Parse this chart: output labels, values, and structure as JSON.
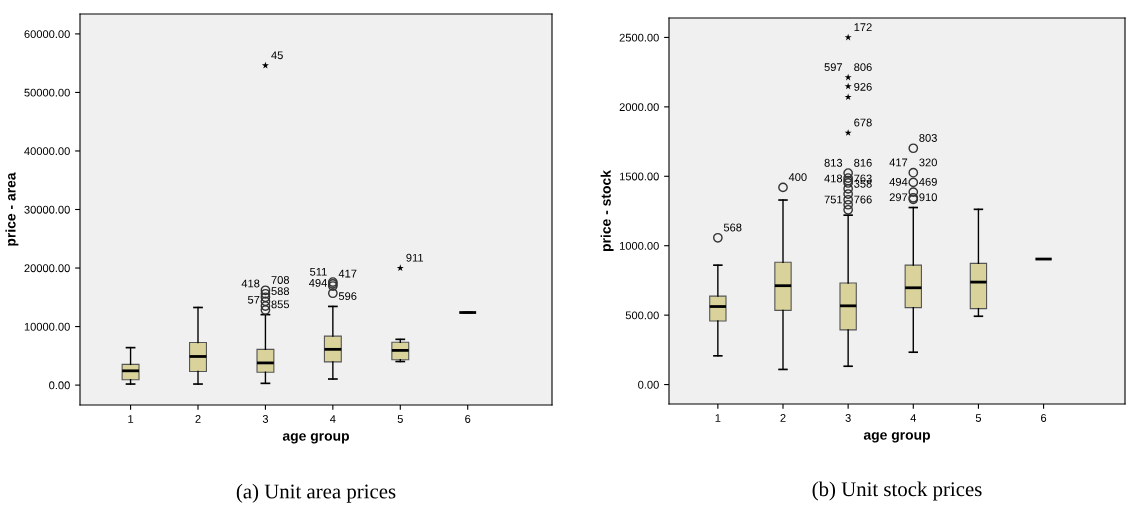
{
  "chart_data": [
    {
      "type": "box",
      "title": "(a) Unit area prices",
      "xlabel": "age group",
      "ylabel": "price - area",
      "categories": [
        "1",
        "2",
        "3",
        "4",
        "5",
        "6"
      ],
      "color": "#d9d39b",
      "boxes": [
        {
          "low": 180,
          "q1": 920,
          "median": 2440,
          "q3": 3540,
          "high": 6400
        },
        {
          "low": 180,
          "q1": 2320,
          "median": 4890,
          "q3": 7270,
          "high": 13260
        },
        {
          "low": 300,
          "q1": 2200,
          "median": 3790,
          "q3": 6110,
          "high": 12040
        },
        {
          "low": 1040,
          "q1": 3970,
          "median": 6110,
          "q3": 8370,
          "high": 13440
        },
        {
          "low": 4030,
          "q1": 4340,
          "median": 5930,
          "q3": 7330,
          "high": 7820
        },
        {
          "low": 12400,
          "q1": 12400,
          "median": 12400,
          "q3": 12400,
          "high": 12400
        }
      ],
      "series": [
        {
          "type": "scatter",
          "marker": "circle",
          "color": "#333333",
          "x": [
            "3",
            "3",
            "3",
            "3",
            "3",
            "3",
            "4",
            "4",
            "4",
            "4"
          ],
          "values": [
            12830,
            13500,
            14300,
            15000,
            15600,
            16200,
            15700,
            16920,
            17290,
            17600
          ]
        },
        {
          "type": "scatter",
          "marker": "star",
          "color": "#000000",
          "x": [
            "3",
            "5"
          ],
          "values": [
            54600,
            20000
          ]
        }
      ],
      "ylim": [
        -3400,
        63400
      ],
      "yticks": [
        {
          "value": 0,
          "label": "0.00"
        },
        {
          "value": 10000,
          "label": "10000.00"
        },
        {
          "value": 20000,
          "label": "20000.00"
        },
        {
          "value": 30000,
          "label": "30000.00"
        },
        {
          "value": 40000,
          "label": "40000.00"
        },
        {
          "value": 50000,
          "label": "50000.00"
        },
        {
          "value": 60000,
          "label": "60000.00"
        }
      ],
      "annotations": [
        {
          "text": "45",
          "x": "3",
          "y": 54600
        },
        {
          "text": "708",
          "x": "3",
          "y": 16200
        },
        {
          "text": "418",
          "x": "3",
          "y": 15600
        },
        {
          "text": "588",
          "x": "3",
          "y": 14300
        },
        {
          "text": "855",
          "x": "3",
          "y": 12040
        },
        {
          "text": "57",
          "x": "3",
          "y": 12830
        },
        {
          "text": "417",
          "x": "4",
          "y": 17290
        },
        {
          "text": "511",
          "x": "4",
          "y": 17600
        },
        {
          "text": "494",
          "x": "4",
          "y": 15700
        },
        {
          "text": "596",
          "x": "4",
          "y": 13440
        },
        {
          "text": "911",
          "x": "5",
          "y": 20000
        }
      ]
    },
    {
      "type": "box",
      "title": "(b) Unit stock prices",
      "xlabel": "age group",
      "ylabel": "price - stock",
      "categories": [
        "1",
        "2",
        "3",
        "4",
        "5",
        "6"
      ],
      "color": "#d9d39b",
      "boxes": [
        {
          "low": 207,
          "q1": 458,
          "median": 562,
          "q3": 637,
          "high": 860
        },
        {
          "low": 109,
          "q1": 534,
          "median": 712,
          "q3": 881,
          "high": 1329
        },
        {
          "low": 132,
          "q1": 394,
          "median": 567,
          "q3": 731,
          "high": 1220
        },
        {
          "low": 233,
          "q1": 554,
          "median": 697,
          "q3": 860,
          "high": 1275
        },
        {
          "low": 492,
          "q1": 547,
          "median": 738,
          "q3": 873,
          "high": 1262
        },
        {
          "low": 904,
          "q1": 904,
          "median": 904,
          "q3": 904,
          "high": 904
        }
      ],
      "series": [
        {
          "type": "scatter",
          "marker": "circle",
          "color": "#333333",
          "x": [
            "1",
            "2",
            "3",
            "3",
            "3",
            "3",
            "3",
            "3",
            "3",
            "3",
            "3",
            "4",
            "4",
            "4",
            "4",
            "4",
            "4"
          ],
          "values": [
            1057,
            1420,
            1259,
            1295,
            1331,
            1372,
            1410,
            1452,
            1468,
            1487,
            1523,
            1334,
            1345,
            1386,
            1456,
            1526,
            1702
          ]
        },
        {
          "type": "scatter",
          "marker": "star",
          "color": "#000000",
          "x": [
            "3",
            "3",
            "3",
            "3",
            "3"
          ],
          "values": [
            2500,
            2212,
            2148,
            2070,
            1813
          ]
        }
      ],
      "ylim": [
        -140,
        2640
      ],
      "yticks": [
        {
          "value": 0,
          "label": "0.00"
        },
        {
          "value": 500,
          "label": "500.00"
        },
        {
          "value": 1000,
          "label": "1000.00"
        },
        {
          "value": 1500,
          "label": "1500.00"
        },
        {
          "value": 2000,
          "label": "2000.00"
        },
        {
          "value": 2500,
          "label": "2500.00"
        }
      ],
      "annotations": [
        {
          "text": "568",
          "x": "1",
          "y": 1057
        },
        {
          "text": "400",
          "x": "2",
          "y": 1420
        },
        {
          "text": "172",
          "x": "3",
          "y": 2500
        },
        {
          "text": "806",
          "x": "3",
          "y": 2212
        },
        {
          "text": "597",
          "x": "3",
          "y": 2212
        },
        {
          "text": "926",
          "x": "3",
          "y": 2070
        },
        {
          "text": "678",
          "x": "3",
          "y": 1813
        },
        {
          "text": "816",
          "x": "3",
          "y": 1523
        },
        {
          "text": "813",
          "x": "3",
          "y": 1523
        },
        {
          "text": "358",
          "x": "3",
          "y": 1372
        },
        {
          "text": "418",
          "x": "3",
          "y": 1410
        },
        {
          "text": "763",
          "x": "3",
          "y": 1410
        },
        {
          "text": "766",
          "x": "3",
          "y": 1259
        },
        {
          "text": "751",
          "x": "3",
          "y": 1259
        },
        {
          "text": "803",
          "x": "4",
          "y": 1702
        },
        {
          "text": "320",
          "x": "4",
          "y": 1526
        },
        {
          "text": "417",
          "x": "4",
          "y": 1526
        },
        {
          "text": "469",
          "x": "4",
          "y": 1386
        },
        {
          "text": "494",
          "x": "4",
          "y": 1386
        },
        {
          "text": "910",
          "x": "4",
          "y": 1275
        },
        {
          "text": "297",
          "x": "4",
          "y": 1275
        }
      ]
    }
  ]
}
